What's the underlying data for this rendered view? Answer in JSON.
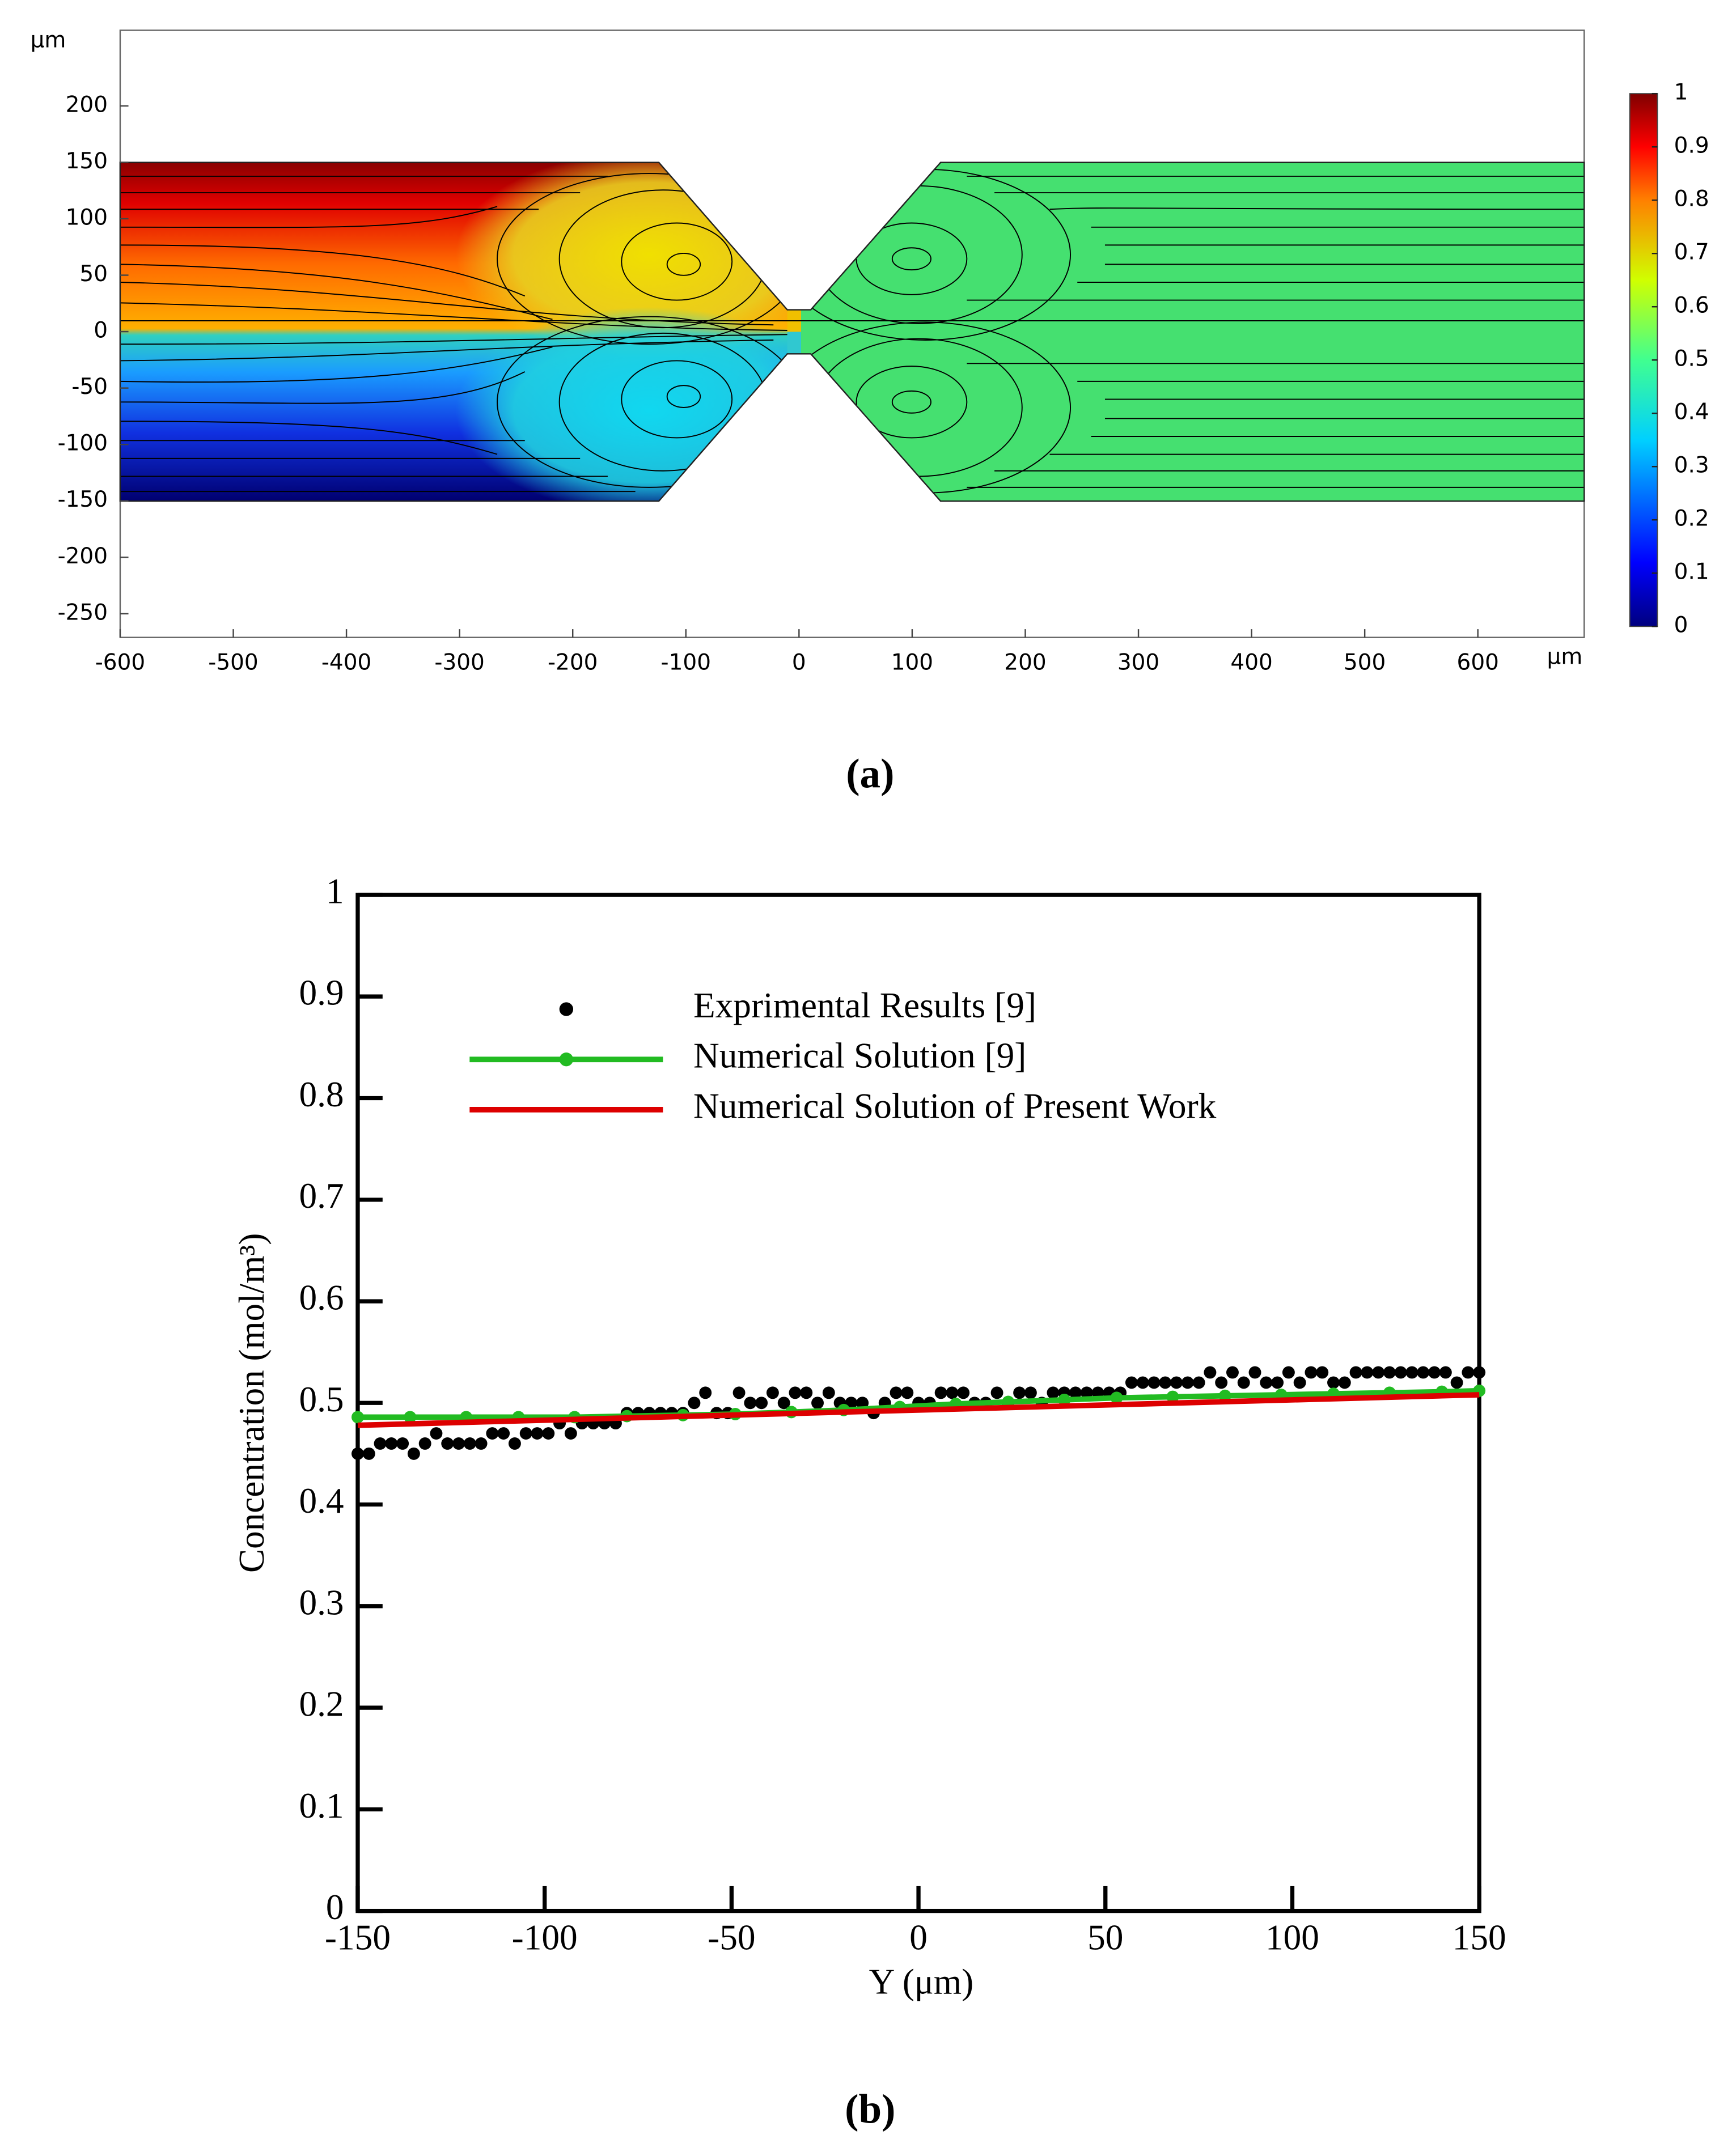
{
  "chart_data": [
    {
      "type": "heatmap",
      "caption": "(a)",
      "x_unit": "μm",
      "y_unit": "μm",
      "xlim": [
        -600,
        694
      ],
      "ylim": [
        -271,
        267
      ],
      "xticks": [
        -600,
        -500,
        -400,
        -300,
        -200,
        -100,
        0,
        100,
        200,
        300,
        400,
        500,
        600
      ],
      "yticks": [
        -250,
        -200,
        -150,
        -100,
        -50,
        0,
        50,
        100,
        150,
        200
      ],
      "colorbar": {
        "range": [
          0,
          1
        ],
        "ticks": [
          0,
          0.1,
          0.2,
          0.3,
          0.4,
          0.5,
          0.6,
          0.7,
          0.8,
          0.9,
          1
        ]
      }
    },
    {
      "type": "line",
      "caption": "(b)",
      "xlabel": "Y (μm)",
      "ylabel": "Concentration (mol/m³)",
      "xlim": [
        -150,
        150
      ],
      "ylim": [
        0,
        1
      ],
      "xticks": [
        -150,
        -100,
        -50,
        0,
        50,
        100,
        150
      ],
      "yticks": [
        0,
        0.1,
        0.2,
        0.3,
        0.4,
        0.5,
        0.6,
        0.7,
        0.8,
        0.9,
        1
      ],
      "series": [
        {
          "name": "Exprimental Results [9]",
          "type": "scatter",
          "color": "#000000",
          "x": [
            -150,
            -147,
            -144,
            -141,
            -138,
            -135,
            -132,
            -129,
            -126,
            -123,
            -120,
            -117,
            -114,
            -111,
            -108,
            -105,
            -102,
            -99,
            -96,
            -93,
            -90,
            -87,
            -84,
            -81,
            -78,
            -75,
            -72,
            -69,
            -66,
            -63,
            -60,
            -57,
            -54,
            -51,
            -48,
            -45,
            -42,
            -39,
            -36,
            -33,
            -30,
            -27,
            -24,
            -21,
            -18,
            -15,
            -12,
            -9,
            -6,
            -3,
            0,
            3,
            6,
            9,
            12,
            15,
            18,
            21,
            24,
            27,
            30,
            33,
            36,
            39,
            42,
            45,
            48,
            51,
            54,
            57,
            60,
            63,
            66,
            69,
            72,
            75,
            78,
            81,
            84,
            87,
            90,
            93,
            96,
            99,
            102,
            105,
            108,
            111,
            114,
            117,
            120,
            123,
            126,
            129,
            132,
            135,
            138,
            141,
            144,
            147,
            150
          ],
          "values": [
            0.45,
            0.45,
            0.46,
            0.46,
            0.46,
            0.45,
            0.46,
            0.47,
            0.46,
            0.46,
            0.46,
            0.46,
            0.47,
            0.47,
            0.46,
            0.47,
            0.47,
            0.47,
            0.48,
            0.47,
            0.48,
            0.48,
            0.48,
            0.48,
            0.49,
            0.49,
            0.49,
            0.49,
            0.49,
            0.49,
            0.5,
            0.51,
            0.49,
            0.49,
            0.51,
            0.5,
            0.5,
            0.51,
            0.5,
            0.51,
            0.51,
            0.5,
            0.51,
            0.5,
            0.5,
            0.5,
            0.49,
            0.5,
            0.51,
            0.51,
            0.5,
            0.5,
            0.51,
            0.51,
            0.51,
            0.5,
            0.5,
            0.51,
            0.5,
            0.51,
            0.51,
            0.5,
            0.51,
            0.51,
            0.51,
            0.51,
            0.51,
            0.51,
            0.51,
            0.52,
            0.52,
            0.52,
            0.52,
            0.52,
            0.52,
            0.52,
            0.53,
            0.52,
            0.53,
            0.52,
            0.53,
            0.52,
            0.52,
            0.53,
            0.52,
            0.53,
            0.53,
            0.52,
            0.52,
            0.53,
            0.53,
            0.53,
            0.53,
            0.53,
            0.53,
            0.53,
            0.53,
            0.53,
            0.52,
            0.53,
            0.53
          ]
        },
        {
          "name": "Numerical Solution [9]",
          "type": "line",
          "marker": true,
          "color": "#22bb22",
          "x": [
            -150,
            -136,
            -121,
            -107,
            -92,
            -78,
            -63,
            -49,
            -34,
            -20,
            -5,
            10,
            24,
            39,
            53,
            68,
            82,
            97,
            111,
            126,
            140,
            150
          ],
          "values": [
            0.486,
            0.486,
            0.486,
            0.486,
            0.486,
            0.487,
            0.488,
            0.489,
            0.491,
            0.493,
            0.496,
            0.499,
            0.501,
            0.503,
            0.505,
            0.506,
            0.507,
            0.508,
            0.509,
            0.51,
            0.511,
            0.512
          ]
        },
        {
          "name": "Numerical Solution of Present Work",
          "type": "line",
          "color": "#dd0000",
          "x": [
            -150,
            150
          ],
          "values": [
            0.478,
            0.508
          ]
        }
      ]
    }
  ]
}
